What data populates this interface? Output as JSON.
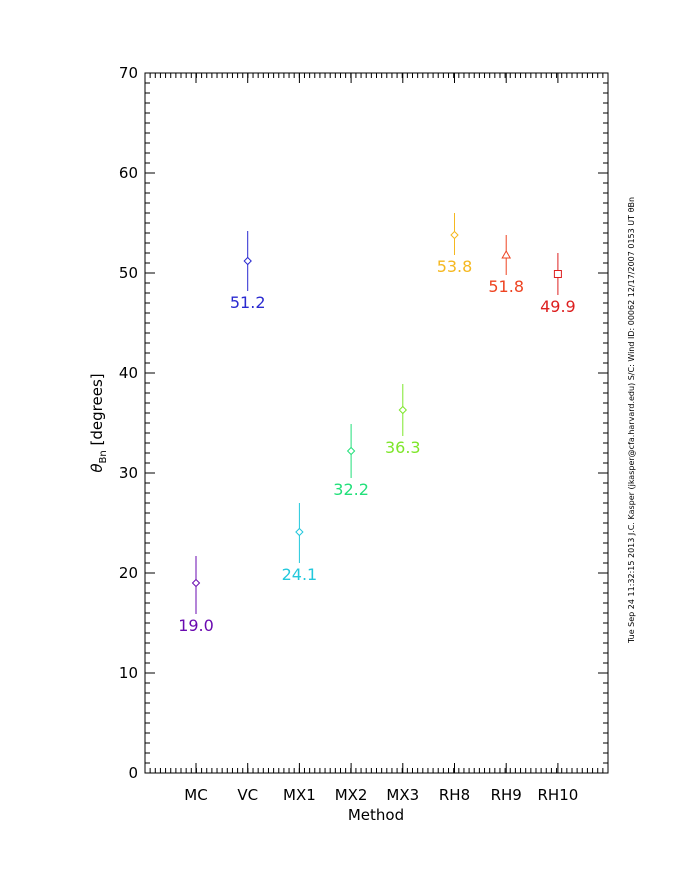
{
  "chart_data": {
    "type": "scatter",
    "xlabel": "Method",
    "ylabel_symbol": "θ",
    "ylabel_subscript": "Bn",
    "ylabel_unit": "[degrees]",
    "ylim": [
      0,
      70
    ],
    "y_ticks": [
      0,
      10,
      20,
      30,
      40,
      50,
      60,
      70
    ],
    "categories": [
      "MC",
      "VC",
      "MX1",
      "MX2",
      "MX3",
      "RH8",
      "RH9",
      "RH10"
    ],
    "points": [
      {
        "category": "MC",
        "value": 19.0,
        "err_low": 15.9,
        "err_high": 21.7,
        "label": "19.0",
        "color": "#6a0ab0",
        "marker": "diamond"
      },
      {
        "category": "VC",
        "value": 51.2,
        "err_low": 48.2,
        "err_high": 54.2,
        "label": "51.2",
        "color": "#2a2ad0",
        "marker": "diamond"
      },
      {
        "category": "MX1",
        "value": 24.1,
        "err_low": 21.0,
        "err_high": 27.0,
        "label": "24.1",
        "color": "#22c8dc",
        "marker": "diamond"
      },
      {
        "category": "MX2",
        "value": 32.2,
        "err_low": 29.5,
        "err_high": 34.9,
        "label": "32.2",
        "color": "#22e07a",
        "marker": "diamond"
      },
      {
        "category": "MX3",
        "value": 36.3,
        "err_low": 33.7,
        "err_high": 38.9,
        "label": "36.3",
        "color": "#7ee62a",
        "marker": "diamond"
      },
      {
        "category": "RH8",
        "value": 53.8,
        "err_low": 51.8,
        "err_high": 56.0,
        "label": "53.8",
        "color": "#f5b820",
        "marker": "diamond"
      },
      {
        "category": "RH9",
        "value": 51.8,
        "err_low": 49.8,
        "err_high": 53.8,
        "label": "51.8",
        "color": "#ee4422",
        "marker": "triangle"
      },
      {
        "category": "RH10",
        "value": 49.9,
        "err_low": 47.8,
        "err_high": 52.0,
        "label": "49.9",
        "color": "#dd2020",
        "marker": "square"
      }
    ],
    "grid": false,
    "legend": "none"
  },
  "footer": "Tue Sep 24 11:32:15 2013   J.C. Kasper (jkasper@cfa.harvard.edu)   S/C: Wind ID: 00062 12/17/2007  0153 UT θBn"
}
